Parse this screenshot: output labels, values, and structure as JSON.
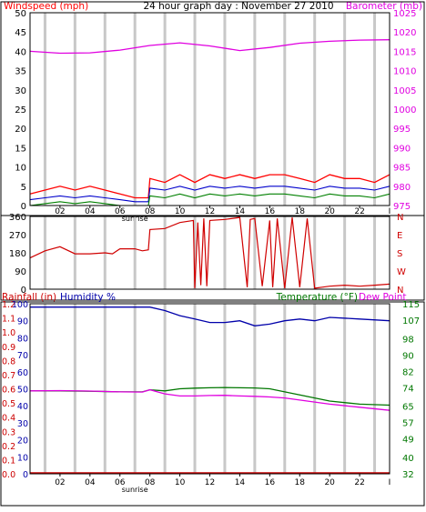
{
  "header": {
    "left_label": "Windspeed (mph)",
    "center_title": "24 hour graph day : November 27 2010",
    "right_label": "Barometer (mb)"
  },
  "colors": {
    "wind": "#ff0000",
    "wind_avg": "#0000cc",
    "wind_dir": "#d00000",
    "barometer": "#e000e0",
    "humidity": "#0000aa",
    "rain": "#cc0000",
    "temperature": "#007700",
    "dewpoint": "#e000e0",
    "grid": "#c8c8c8",
    "frame": "#000000"
  },
  "legend": {
    "rainfall_label": "Rainfall (in)",
    "humidity_label": "Humidity %",
    "temperature_label": "Temperature (°F)",
    "dewpoint_label": "Dew Point"
  },
  "x_axis": {
    "tick_labels": [
      "02",
      "04",
      "06",
      "08",
      "10",
      "12",
      "14",
      "16",
      "18",
      "20",
      "22"
    ],
    "end_label": "I",
    "sunrise_label": "sunrise"
  },
  "chart_data": [
    {
      "type": "line",
      "panel": "wind-barometer",
      "x_range": [
        0,
        24
      ],
      "left_axis": {
        "label": "Windspeed (mph)",
        "ticks": [
          0,
          5,
          10,
          15,
          20,
          25,
          30,
          35,
          40,
          45,
          50
        ],
        "ylim": [
          0,
          50
        ]
      },
      "right_axis": {
        "label": "Barometer (mb)",
        "ticks": [
          975,
          980,
          985,
          990,
          995,
          1000,
          1005,
          1010,
          1015,
          1020,
          1025
        ],
        "ylim": [
          975,
          1025
        ]
      },
      "series": [
        {
          "name": "Windspeed (mph)",
          "axis": "left",
          "style": "gust",
          "x": [
            0,
            1,
            2,
            3,
            4,
            5,
            6,
            7,
            7.9,
            8,
            9,
            10,
            11,
            12,
            13,
            14,
            15,
            16,
            17,
            18,
            19,
            20,
            21,
            22,
            23,
            24
          ],
          "y": [
            3,
            4,
            5,
            4,
            5,
            4,
            3,
            2,
            2,
            7,
            6,
            8,
            6,
            8,
            7,
            8,
            7,
            8,
            8,
            7,
            6,
            8,
            7,
            7,
            6,
            8
          ]
        },
        {
          "name": "Windspeed average",
          "axis": "left",
          "style": "avg",
          "x": [
            0,
            1,
            2,
            3,
            4,
            5,
            6,
            7,
            7.9,
            8,
            9,
            10,
            11,
            12,
            13,
            14,
            15,
            16,
            17,
            18,
            19,
            20,
            21,
            22,
            23,
            24
          ],
          "y": [
            1.5,
            2,
            2.5,
            2,
            2.5,
            2,
            1.5,
            1,
            1,
            4.5,
            4,
            5,
            4,
            5,
            4.5,
            5,
            4.5,
            5,
            5,
            4.5,
            4,
            5,
            4.5,
            4.5,
            4,
            5
          ]
        },
        {
          "name": "Windspeed low",
          "axis": "left",
          "style": "low",
          "x": [
            0,
            1,
            2,
            3,
            4,
            5,
            6,
            7,
            7.9,
            8,
            9,
            10,
            11,
            12,
            13,
            14,
            15,
            16,
            17,
            18,
            19,
            20,
            21,
            22,
            23,
            24
          ],
          "y": [
            0,
            0.5,
            1,
            0.5,
            1,
            0.5,
            0,
            0,
            0,
            2.5,
            2,
            3,
            2,
            3,
            2.5,
            3,
            2.5,
            3,
            3,
            2.5,
            2,
            3,
            2.5,
            2.5,
            2,
            3
          ]
        },
        {
          "name": "Barometer (mb)",
          "axis": "right",
          "x": [
            0,
            2,
            4,
            6,
            8,
            10,
            12,
            14,
            16,
            18,
            20,
            22,
            24
          ],
          "y": [
            1015.0,
            1014.5,
            1014.6,
            1015.3,
            1016.5,
            1017.2,
            1016.4,
            1015.2,
            1016.0,
            1017.1,
            1017.6,
            1017.9,
            1018.0
          ]
        }
      ]
    },
    {
      "type": "line",
      "panel": "wind-direction",
      "x_range": [
        0,
        24
      ],
      "left_axis": {
        "ticks": [
          0,
          90,
          180,
          270,
          360
        ],
        "ylim": [
          0,
          360
        ]
      },
      "right_axis": {
        "ticks": [
          "N",
          "E",
          "S",
          "W",
          "N"
        ]
      },
      "series": [
        {
          "name": "Wind direction",
          "x": [
            0,
            1,
            2,
            3,
            4,
            5,
            5.5,
            6,
            7,
            7.5,
            7.9,
            8,
            9,
            10,
            10.9,
            11.0,
            11.2,
            11.4,
            11.6,
            11.8,
            12.0,
            13,
            14,
            14.5,
            14.7,
            15,
            15.5,
            16.0,
            16.2,
            16.5,
            17,
            17.5,
            18,
            18.5,
            19,
            19.5,
            20,
            21,
            22,
            23,
            24
          ],
          "y": [
            155,
            190,
            210,
            175,
            175,
            180,
            175,
            200,
            200,
            190,
            195,
            295,
            300,
            330,
            340,
            5,
            330,
            20,
            350,
            15,
            340,
            345,
            355,
            10,
            345,
            350,
            15,
            340,
            10,
            350,
            5,
            355,
            10,
            350,
            5,
            10,
            15,
            20,
            15,
            20,
            25
          ]
        }
      ]
    },
    {
      "type": "line",
      "panel": "humidity-temperature",
      "x_range": [
        0,
        24
      ],
      "left_axis_rain": {
        "label": "Rainfall (in)",
        "ticks": [
          "0.0",
          "0.1",
          "0.2",
          "0.3",
          "0.4",
          "0.5",
          "0.6",
          "0.7",
          "0.8",
          "0.9",
          "1.0",
          "1.1",
          "1.2"
        ]
      },
      "left_axis_humidity": {
        "label": "Humidity %",
        "ticks": [
          0,
          10,
          20,
          30,
          40,
          50,
          60,
          70,
          80,
          90,
          100
        ],
        "ylim": [
          0,
          100
        ]
      },
      "right_axis": {
        "label": "Temperature (°F)",
        "ticks": [
          32,
          40,
          49,
          57,
          65,
          74,
          82,
          90,
          98,
          107,
          115
        ],
        "ylim": [
          32,
          115
        ]
      },
      "series": [
        {
          "name": "Humidity %",
          "axis": "humidity",
          "x": [
            0,
            2,
            4,
            6,
            8,
            9,
            10,
            11,
            12,
            13,
            14,
            15,
            16,
            17,
            18,
            19,
            20,
            22,
            24
          ],
          "y": [
            98,
            98,
            98,
            98,
            98,
            96,
            93,
            91,
            89,
            89,
            90,
            87,
            88,
            90,
            91,
            90,
            92,
            91,
            90
          ]
        },
        {
          "name": "Temperature (°F)",
          "axis": "temperature",
          "x": [
            0,
            2,
            4,
            6,
            7.5,
            8,
            9,
            10,
            11,
            12,
            13,
            14,
            15,
            16,
            17,
            18,
            19,
            20,
            22,
            24
          ],
          "y": [
            72.5,
            72.5,
            72.3,
            72.0,
            72.0,
            73.0,
            72.5,
            73.5,
            73.8,
            74.0,
            74.1,
            74.0,
            73.9,
            73.5,
            72.0,
            70.5,
            69.0,
            67.5,
            66.0,
            65.5
          ]
        },
        {
          "name": "Dew Point",
          "axis": "temperature",
          "x": [
            0,
            2,
            4,
            6,
            7.5,
            8,
            9,
            10,
            11,
            12,
            13,
            14,
            15,
            16,
            17,
            18,
            19,
            20,
            22,
            24
          ],
          "y": [
            72.5,
            72.6,
            72.4,
            72.0,
            71.9,
            73.0,
            71.0,
            70.0,
            70.0,
            70.2,
            70.3,
            70.0,
            69.8,
            69.5,
            69.0,
            68.0,
            67.0,
            66.0,
            64.5,
            63.0
          ]
        },
        {
          "name": "Rainfall (in)",
          "axis": "rain",
          "x": [
            0,
            24
          ],
          "y": [
            0,
            0
          ]
        }
      ]
    }
  ]
}
